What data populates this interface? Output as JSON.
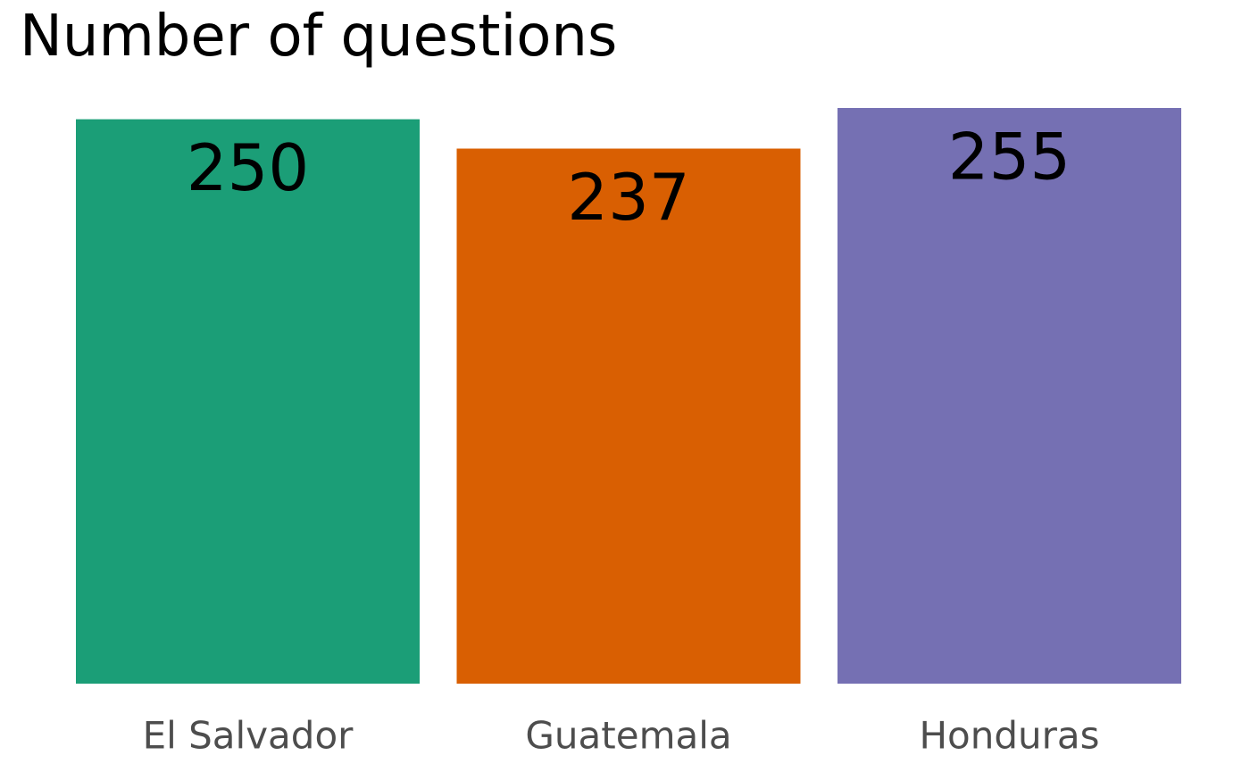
{
  "chart_data": {
    "type": "bar",
    "title": "Number of questions",
    "xlabel": "",
    "ylabel": "",
    "categories": [
      "El Salvador",
      "Guatemala",
      "Honduras"
    ],
    "values": [
      250,
      237,
      255
    ],
    "colors": [
      "#1b9e77",
      "#d95f02",
      "#7570b3"
    ],
    "ylim": [
      0,
      255
    ],
    "grid": false,
    "legend": "none",
    "data_labels": true
  }
}
